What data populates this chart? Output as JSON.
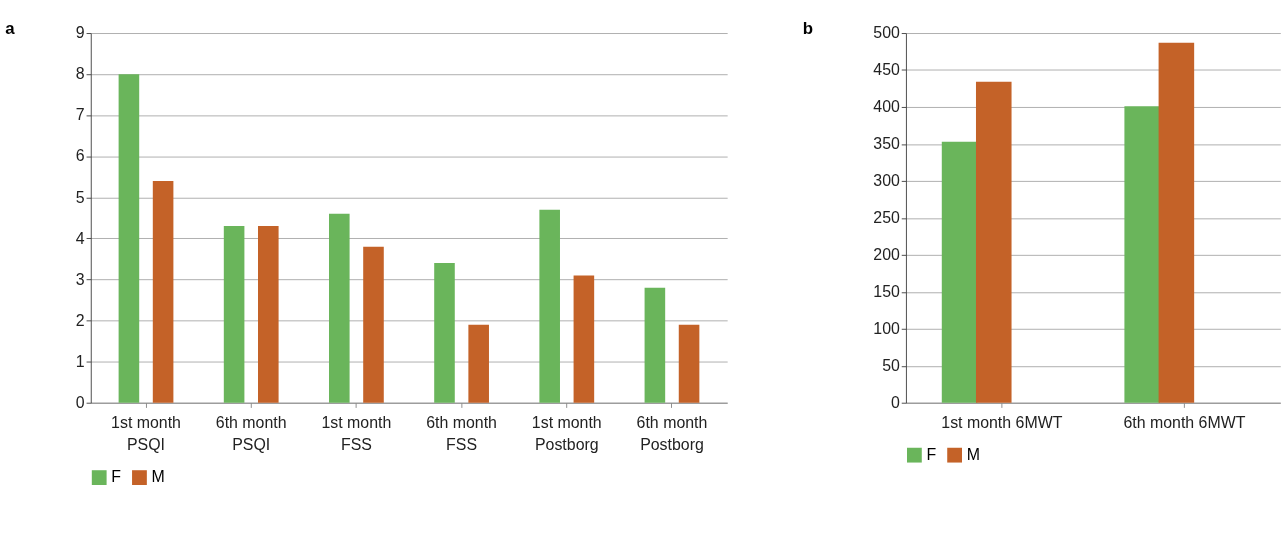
{
  "chart_data": [
    {
      "type": "bar",
      "title": "a",
      "categories": [
        "1st month\nPSQI",
        "6th month\nPSQI",
        "1st month\nFSS",
        "6th month\nFSS",
        "1st month\nPostborg",
        "6th month\nPostborg"
      ],
      "series": [
        {
          "name": "F",
          "color": "#6ab55b",
          "values": [
            8,
            4.3,
            4.6,
            3.4,
            4.7,
            2.8
          ]
        },
        {
          "name": "M",
          "color": "#c46228",
          "values": [
            5.4,
            4.3,
            3.8,
            1.9,
            3.1,
            1.9
          ]
        }
      ],
      "ylim": [
        0,
        9
      ],
      "yticks": [
        0,
        1,
        2,
        3,
        4,
        5,
        6,
        7,
        8,
        9
      ],
      "grid": "y",
      "legend": "bottom"
    },
    {
      "type": "bar",
      "title": "b",
      "categories": [
        "1st month 6MWT",
        "6th month 6MWT"
      ],
      "series": [
        {
          "name": "F",
          "color": "#6ab55b",
          "values": [
            353,
            401
          ]
        },
        {
          "name": "M",
          "color": "#c46228",
          "values": [
            434,
            487
          ]
        }
      ],
      "ylim": [
        0,
        500
      ],
      "yticks": [
        0,
        50,
        100,
        150,
        200,
        250,
        300,
        350,
        400,
        450,
        500
      ],
      "grid": "y",
      "legend": "bottom"
    }
  ]
}
